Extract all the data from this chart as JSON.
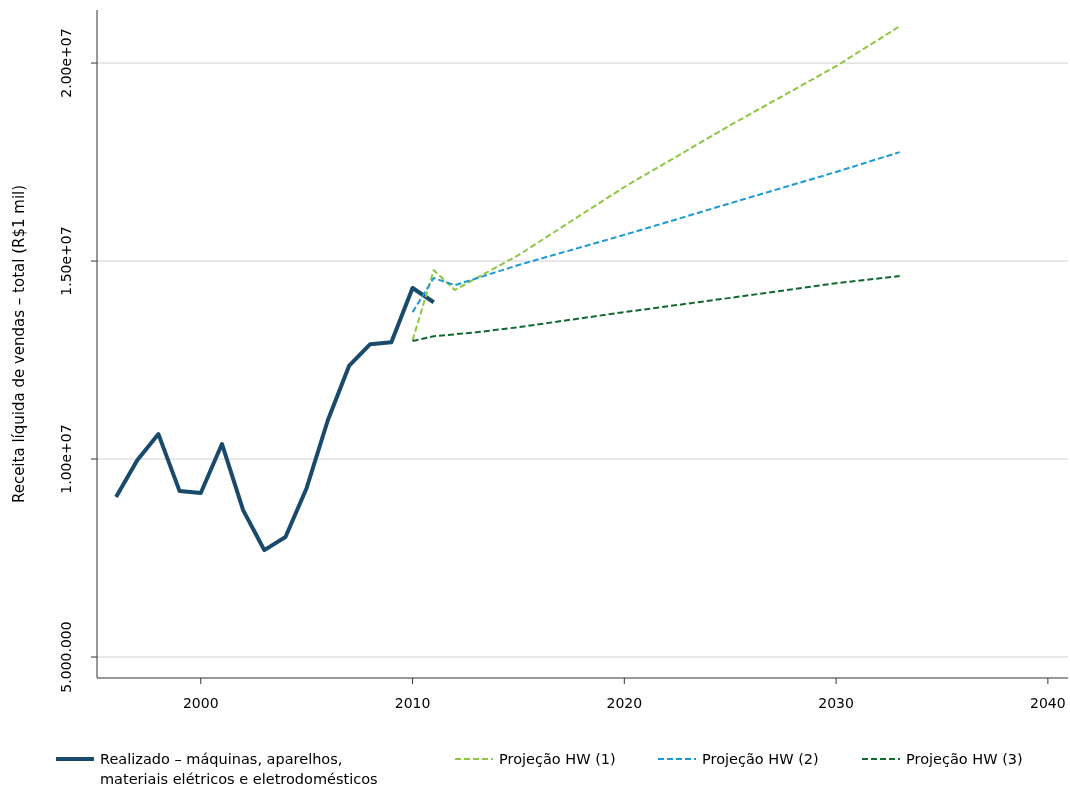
{
  "chart_data": {
    "type": "line",
    "ylabel": "Receita líquida de vendas – total (R$1 mil)",
    "xlim": [
      1995.1,
      2040.95
    ],
    "xticks": [
      2000,
      2010,
      2020,
      2030,
      2040
    ],
    "ylim": [
      4470000,
      21340000
    ],
    "yticks": [
      {
        "value": 5000000,
        "label": "5.000.000"
      },
      {
        "value": 10000000,
        "label": "1.00e+07"
      },
      {
        "value": 15000000,
        "label": "1.50e+07"
      },
      {
        "value": 20000000,
        "label": "2.00e+07"
      }
    ],
    "grid": "y",
    "legend": "bottom",
    "marker": "none",
    "series": [
      {
        "name": "Realizado – máquinas, aparelhos, materiais elétricos e eletrodomésticos",
        "color": "#1a4a6b",
        "line_style": "solid",
        "x": [
          1996,
          1997,
          1998,
          1999,
          2000,
          2001,
          2002,
          2003,
          2004,
          2005,
          2006,
          2007,
          2008,
          2009,
          2010,
          2011
        ],
        "values": [
          9040000,
          9970000,
          10630000,
          9190000,
          9140000,
          10380000,
          8710000,
          7700000,
          8030000,
          9270000,
          10980000,
          12350000,
          12900000,
          12950000,
          14320000,
          13960000
        ]
      },
      {
        "name": "Projeção HW (1)",
        "color": "#8dc63f",
        "line_style": "dashed",
        "x": [
          2010,
          2011,
          2012,
          2015,
          2020,
          2025,
          2030,
          2033
        ],
        "values": [
          13000000,
          14770000,
          14270000,
          15150000,
          16870000,
          18430000,
          19920000,
          20930000
        ]
      },
      {
        "name": "Projeção HW (2)",
        "color": "#1b9ad6",
        "line_style": "dashed",
        "x": [
          2010,
          2011,
          2012,
          2015,
          2020,
          2025,
          2030,
          2033
        ],
        "values": [
          13710000,
          14570000,
          14390000,
          14900000,
          15660000,
          16460000,
          17250000,
          17750000
        ]
      },
      {
        "name": "Projeção HW (3)",
        "color": "#11692f",
        "line_style": "dashed",
        "x": [
          2010,
          2011,
          2013,
          2015,
          2020,
          2025,
          2030,
          2033
        ],
        "values": [
          12980000,
          13100000,
          13200000,
          13330000,
          13710000,
          14070000,
          14440000,
          14620000
        ]
      }
    ]
  }
}
